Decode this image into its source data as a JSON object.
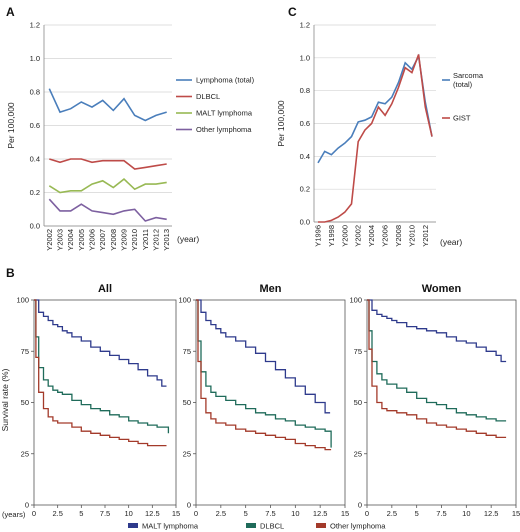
{
  "panel_labels": {
    "a": "A",
    "b": "B",
    "c": "C"
  },
  "chart_data": [
    {
      "id": "A",
      "type": "line",
      "ylabel": "Per 100,000",
      "x_unit": "(year)",
      "ylim": [
        0,
        1.2
      ],
      "yticks": [
        "0.0",
        "0.2",
        "0.4",
        "0.6",
        "0.8",
        "1.0",
        "1.2"
      ],
      "categories": [
        "Y2002",
        "Y2003",
        "Y2004",
        "Y2005",
        "Y2006",
        "Y2007",
        "Y2008",
        "Y2009",
        "Y2010",
        "Y2011",
        "Y2012",
        "Y2013"
      ],
      "series": [
        {
          "name": "Lymphoma (total)",
          "color": "#4a7ebb",
          "values": [
            0.82,
            0.68,
            0.7,
            0.74,
            0.71,
            0.75,
            0.69,
            0.76,
            0.66,
            0.63,
            0.66,
            0.68
          ]
        },
        {
          "name": "DLBCL",
          "color": "#be4b48",
          "values": [
            0.4,
            0.38,
            0.4,
            0.4,
            0.38,
            0.39,
            0.39,
            0.39,
            0.34,
            0.35,
            0.36,
            0.37
          ]
        },
        {
          "name": "MALT lymphoma",
          "color": "#98b954",
          "values": [
            0.24,
            0.2,
            0.21,
            0.21,
            0.25,
            0.27,
            0.23,
            0.28,
            0.22,
            0.25,
            0.25,
            0.26
          ]
        },
        {
          "name": "Other lymphoma",
          "color": "#7d60a0",
          "values": [
            0.16,
            0.09,
            0.09,
            0.13,
            0.09,
            0.08,
            0.07,
            0.09,
            0.1,
            0.03,
            0.05,
            0.04
          ]
        }
      ]
    },
    {
      "id": "C",
      "type": "line",
      "ylabel": "Per 100,000",
      "x_unit": "(year)",
      "ylim": [
        0,
        1.2
      ],
      "yticks": [
        "0.0",
        "0.2",
        "0.4",
        "0.6",
        "0.8",
        "1.0",
        "1.2"
      ],
      "x": [
        1996,
        1997,
        1998,
        1999,
        2000,
        2001,
        2002,
        2003,
        2004,
        2005,
        2006,
        2007,
        2008,
        2009,
        2010,
        2011,
        2012,
        2013
      ],
      "tick_labels": [
        "Y1996",
        "Y1998",
        "Y2000",
        "Y2002",
        "Y2004",
        "Y2006",
        "Y2008",
        "Y2010",
        "Y2012"
      ],
      "tick_years": [
        1996,
        1998,
        2000,
        2002,
        2004,
        2006,
        2008,
        2010,
        2012
      ],
      "series": [
        {
          "name": "Sarcoma (total)",
          "color": "#4a7ebb",
          "values": [
            0.36,
            0.43,
            0.41,
            0.45,
            0.48,
            0.52,
            0.61,
            0.62,
            0.64,
            0.73,
            0.72,
            0.76,
            0.85,
            0.97,
            0.93,
            1.01,
            0.73,
            0.52
          ]
        },
        {
          "name": "GIST",
          "color": "#be4b48",
          "values": [
            0.0,
            0.0,
            0.01,
            0.03,
            0.06,
            0.11,
            0.49,
            0.56,
            0.6,
            0.7,
            0.65,
            0.72,
            0.82,
            0.94,
            0.91,
            1.02,
            0.7,
            0.52
          ]
        }
      ]
    },
    {
      "id": "B",
      "type": "line",
      "step": true,
      "ylabel": "Survival rate (%)",
      "x_unit": "(years)",
      "xlim": [
        0,
        15
      ],
      "ylim": [
        0,
        100
      ],
      "xticks": [
        "0",
        "2.5",
        "5",
        "7.5",
        "10",
        "12.5",
        "15"
      ],
      "yticks": [
        "0",
        "25",
        "50",
        "75",
        "100"
      ],
      "legend": [
        {
          "name": "MALT lymphoma",
          "color": "#2e3a8c"
        },
        {
          "name": "DLBCL",
          "color": "#1f6b5a"
        },
        {
          "name": "Other lymphoma",
          "color": "#a33a2a"
        }
      ],
      "subplots": [
        {
          "title": "All",
          "series": [
            {
              "name": "MALT lymphoma",
              "color": "#2e3a8c",
              "x": [
                0,
                0.5,
                1,
                1.5,
                2,
                2.5,
                3,
                3.5,
                4,
                5,
                6,
                7,
                8,
                9,
                10,
                11,
                12,
                13,
                13.5,
                14
              ],
              "values": [
                100,
                94,
                92,
                90,
                88,
                87,
                85,
                84,
                82,
                80,
                77,
                75,
                73,
                71,
                69,
                66,
                63,
                61,
                58,
                58
              ]
            },
            {
              "name": "DLBCL",
              "color": "#1f6b5a",
              "x": [
                0,
                0.2,
                0.5,
                1,
                1.5,
                2,
                2.5,
                3,
                4,
                5,
                6,
                7,
                8,
                9,
                10,
                11,
                12,
                13,
                14,
                14.2
              ],
              "values": [
                100,
                82,
                67,
                61,
                58,
                56,
                55,
                54,
                51,
                49,
                47,
                46,
                44,
                43,
                41,
                40,
                39,
                38,
                38,
                35
              ]
            },
            {
              "name": "Other lymphoma",
              "color": "#a33a2a",
              "x": [
                0,
                0.2,
                0.5,
                1,
                1.5,
                2,
                2.5,
                3,
                4,
                5,
                6,
                7,
                8,
                9,
                10,
                11,
                12,
                13,
                14
              ],
              "values": [
                100,
                72,
                55,
                47,
                43,
                41,
                40,
                40,
                38,
                36,
                35,
                34,
                33,
                32,
                31,
                30,
                29,
                29,
                29
              ]
            }
          ]
        },
        {
          "title": "Men",
          "series": [
            {
              "name": "MALT lymphoma",
              "color": "#2e3a8c",
              "x": [
                0,
                0.5,
                1,
                1.5,
                2,
                2.5,
                3,
                4,
                5,
                6,
                7,
                8,
                9,
                10,
                11,
                12,
                13,
                13.5
              ],
              "values": [
                100,
                94,
                90,
                88,
                86,
                84,
                82,
                80,
                77,
                74,
                70,
                66,
                62,
                58,
                54,
                50,
                45,
                45
              ]
            },
            {
              "name": "DLBCL",
              "color": "#1f6b5a",
              "x": [
                0,
                0.2,
                0.5,
                1,
                1.5,
                2,
                3,
                4,
                5,
                6,
                7,
                8,
                9,
                10,
                11,
                12,
                13,
                13.5,
                13.6
              ],
              "values": [
                100,
                80,
                65,
                58,
                55,
                53,
                51,
                49,
                47,
                45,
                44,
                42,
                41,
                39,
                38,
                37,
                36,
                36,
                28
              ]
            },
            {
              "name": "Other lymphoma",
              "color": "#a33a2a",
              "x": [
                0,
                0.2,
                0.5,
                1,
                1.5,
                2,
                3,
                4,
                5,
                6,
                7,
                8,
                9,
                10,
                11,
                12,
                13,
                13.6
              ],
              "values": [
                100,
                70,
                52,
                45,
                42,
                40,
                39,
                37,
                36,
                35,
                34,
                33,
                32,
                30,
                29,
                28,
                27,
                27
              ]
            }
          ]
        },
        {
          "title": "Women",
          "series": [
            {
              "name": "MALT lymphoma",
              "color": "#2e3a8c",
              "x": [
                0,
                0.5,
                1,
                1.5,
                2,
                2.5,
                3,
                4,
                5,
                6,
                7,
                8,
                9,
                10,
                11,
                12,
                13,
                13.5,
                14
              ],
              "values": [
                100,
                95,
                93,
                92,
                91,
                90,
                89,
                87,
                86,
                85,
                84,
                82,
                80,
                79,
                77,
                75,
                73,
                70,
                70
              ]
            },
            {
              "name": "DLBCL",
              "color": "#1f6b5a",
              "x": [
                0,
                0.2,
                0.5,
                1,
                1.5,
                2,
                3,
                4,
                5,
                6,
                7,
                8,
                9,
                10,
                11,
                12,
                13,
                14
              ],
              "values": [
                100,
                85,
                70,
                64,
                61,
                59,
                57,
                55,
                52,
                50,
                49,
                47,
                45,
                44,
                43,
                42,
                41,
                41
              ]
            },
            {
              "name": "Other lymphoma",
              "color": "#a33a2a",
              "x": [
                0,
                0.2,
                0.5,
                1,
                1.5,
                2,
                3,
                4,
                5,
                6,
                7,
                8,
                9,
                10,
                11,
                12,
                13,
                14
              ],
              "values": [
                100,
                76,
                58,
                50,
                47,
                46,
                45,
                44,
                42,
                40,
                39,
                38,
                37,
                36,
                35,
                34,
                33,
                33
              ]
            }
          ]
        }
      ]
    }
  ]
}
